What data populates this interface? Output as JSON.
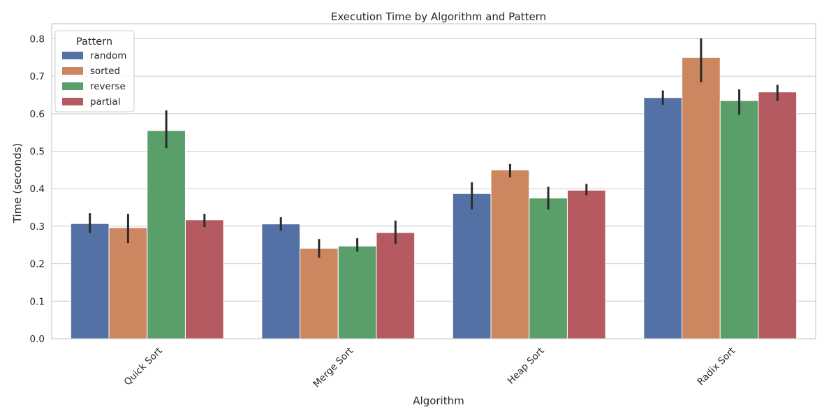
{
  "chart_data": {
    "type": "bar",
    "title": "Execution Time by Algorithm and Pattern",
    "xlabel": "Algorithm",
    "ylabel": "Time (seconds)",
    "ylim": [
      0,
      0.84
    ],
    "yticks": [
      "0.0",
      "0.1",
      "0.2",
      "0.3",
      "0.4",
      "0.5",
      "0.6",
      "0.7",
      "0.8"
    ],
    "grid": true,
    "categories": [
      "Quick Sort",
      "Merge Sort",
      "Heap Sort",
      "Radix Sort"
    ],
    "legend": {
      "title": "Pattern",
      "position": "top-left"
    },
    "series": [
      {
        "name": "random",
        "color": "#5471a5",
        "values": [
          0.307,
          0.306,
          0.387,
          0.643
        ],
        "err_low": [
          0.282,
          0.288,
          0.345,
          0.624
        ],
        "err_high": [
          0.335,
          0.324,
          0.417,
          0.662
        ]
      },
      {
        "name": "sorted",
        "color": "#cc8660",
        "values": [
          0.296,
          0.241,
          0.45,
          0.75
        ],
        "err_low": [
          0.255,
          0.216,
          0.43,
          0.684
        ],
        "err_high": [
          0.333,
          0.266,
          0.466,
          0.801
        ]
      },
      {
        "name": "reverse",
        "color": "#5a9e6a",
        "values": [
          0.555,
          0.247,
          0.375,
          0.635
        ],
        "err_low": [
          0.508,
          0.232,
          0.345,
          0.597
        ],
        "err_high": [
          0.609,
          0.268,
          0.405,
          0.665
        ]
      },
      {
        "name": "partial",
        "color": "#b65a61",
        "values": [
          0.317,
          0.283,
          0.396,
          0.658
        ],
        "err_low": [
          0.298,
          0.253,
          0.383,
          0.634
        ],
        "err_high": [
          0.333,
          0.315,
          0.413,
          0.677
        ]
      }
    ]
  }
}
